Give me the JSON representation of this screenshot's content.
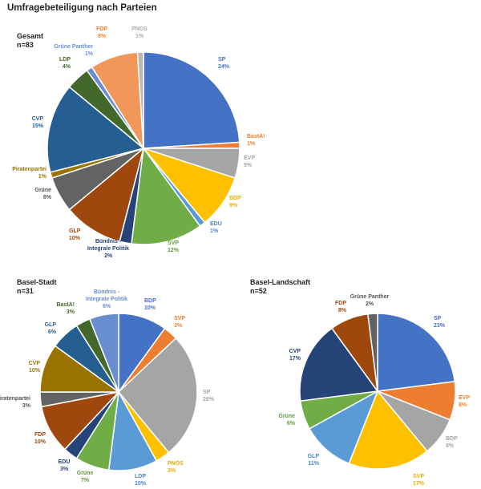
{
  "page": {
    "title": "Umfragebeteiligung nach Parteien"
  },
  "chart_data": [
    {
      "type": "pie",
      "title": "Gesamt",
      "subtitle": "n=83",
      "slices": [
        {
          "label": "SP",
          "value": 24,
          "text": "24%",
          "color": "#4472C4",
          "label_color": "#4472C4"
        },
        {
          "label": "BastA!",
          "value": 1,
          "text": "1%",
          "color": "#ED7D31",
          "label_color": "#ED7D31"
        },
        {
          "label": "EVP",
          "value": 5,
          "text": "5%",
          "color": "#A5A5A5",
          "label_color": "#A5A5A5"
        },
        {
          "label": "BDP",
          "value": 9,
          "text": "9%",
          "color": "#FFC000",
          "label_color": "#E6AC00"
        },
        {
          "label": "EDU",
          "value": 1,
          "text": "1%",
          "color": "#5B9BD5",
          "label_color": "#4A86C5"
        },
        {
          "label": "SVP",
          "value": 12,
          "text": "12%",
          "color": "#70AD47",
          "label_color": "#5E9A3A"
        },
        {
          "label": "Bündnis - Integrale Politik",
          "value": 2,
          "text": "2%",
          "color": "#264478",
          "label_color": "#264478"
        },
        {
          "label": "GLP",
          "value": 10,
          "text": "10%",
          "color": "#9E480E",
          "label_color": "#9E480E"
        },
        {
          "label": "Grüne",
          "value": 6,
          "text": "6%",
          "color": "#636363",
          "label_color": "#555555"
        },
        {
          "label": "Piratenpartei",
          "value": 1,
          "text": "1%",
          "color": "#997300",
          "label_color": "#997300"
        },
        {
          "label": "CVP",
          "value": 15,
          "text": "15%",
          "color": "#255E91",
          "label_color": "#255E91"
        },
        {
          "label": "LDP",
          "value": 4,
          "text": "4%",
          "color": "#43682B",
          "label_color": "#43682B"
        },
        {
          "label": "Grüne Panther",
          "value": 1,
          "text": "1%",
          "color": "#698ED0",
          "label_color": "#698ED0"
        },
        {
          "label": "FDP",
          "value": 8,
          "text": "8%",
          "color": "#F1975A",
          "label_color": "#ED7D31"
        },
        {
          "label": "PNOS",
          "value": 1,
          "text": "1%",
          "color": "#B7B7B7",
          "label_color": "#AAAAAA"
        }
      ]
    },
    {
      "type": "pie",
      "title": "Basel-Stadt",
      "subtitle": "n=31",
      "slices": [
        {
          "label": "BDP",
          "value": 10,
          "text": "10%",
          "color": "#4472C4",
          "label_color": "#4472C4"
        },
        {
          "label": "SVP",
          "value": 3,
          "text": "3%",
          "color": "#ED7D31",
          "label_color": "#ED7D31"
        },
        {
          "label": "SP",
          "value": 26,
          "text": "26%",
          "color": "#A5A5A5",
          "label_color": "#A5A5A5"
        },
        {
          "label": "PNOS",
          "value": 3,
          "text": "3%",
          "color": "#FFC000",
          "label_color": "#E6AC00"
        },
        {
          "label": "LDP",
          "value": 10,
          "text": "10%",
          "color": "#5B9BD5",
          "label_color": "#4A86C5"
        },
        {
          "label": "Grüne",
          "value": 7,
          "text": "7%",
          "color": "#70AD47",
          "label_color": "#5E9A3A"
        },
        {
          "label": "EDU",
          "value": 3,
          "text": "3%",
          "color": "#264478",
          "label_color": "#264478"
        },
        {
          "label": "FDP",
          "value": 10,
          "text": "10%",
          "color": "#9E480E",
          "label_color": "#9E480E"
        },
        {
          "label": "Piratenpartei",
          "value": 3,
          "text": "3%",
          "color": "#636363",
          "label_color": "#555555"
        },
        {
          "label": "CVP",
          "value": 10,
          "text": "10%",
          "color": "#997300",
          "label_color": "#997300"
        },
        {
          "label": "GLP",
          "value": 6,
          "text": "6%",
          "color": "#255E91",
          "label_color": "#255E91"
        },
        {
          "label": "BastA!",
          "value": 3,
          "text": "3%",
          "color": "#43682B",
          "label_color": "#43682B"
        },
        {
          "label": "Bündnis - Integrale Politik",
          "value": 6,
          "text": "6%",
          "color": "#698ED0",
          "label_color": "#698ED0"
        }
      ]
    },
    {
      "type": "pie",
      "title": "Basel-Landschaft",
      "subtitle": "n=52",
      "slices": [
        {
          "label": "SP",
          "value": 23,
          "text": "23%",
          "color": "#4472C4",
          "label_color": "#4472C4"
        },
        {
          "label": "EVP",
          "value": 8,
          "text": "8%",
          "color": "#ED7D31",
          "label_color": "#ED7D31"
        },
        {
          "label": "BDP",
          "value": 8,
          "text": "8%",
          "color": "#A5A5A5",
          "label_color": "#A5A5A5"
        },
        {
          "label": "SVP",
          "value": 17,
          "text": "17%",
          "color": "#FFC000",
          "label_color": "#E6AC00"
        },
        {
          "label": "GLP",
          "value": 11,
          "text": "11%",
          "color": "#5B9BD5",
          "label_color": "#4A86C5"
        },
        {
          "label": "Grüne",
          "value": 6,
          "text": "6%",
          "color": "#70AD47",
          "label_color": "#5E9A3A"
        },
        {
          "label": "CVP",
          "value": 17,
          "text": "17%",
          "color": "#264478",
          "label_color": "#264478"
        },
        {
          "label": "FDP",
          "value": 8,
          "text": "8%",
          "color": "#9E480E",
          "label_color": "#9E480E"
        },
        {
          "label": "Grüne Panther",
          "value": 2,
          "text": "2%",
          "color": "#636363",
          "label_color": "#555555"
        }
      ]
    }
  ]
}
